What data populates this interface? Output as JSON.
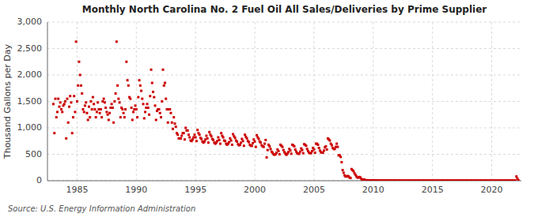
{
  "chart_data": {
    "type": "scatter",
    "title": "Monthly North Carolina No. 2 Fuel Oil All Sales/Deliveries by Prime Supplier",
    "y_label": "Thousand Gallons per Day",
    "source": "Source: U.S. Energy Information Administration",
    "color": "#cc0000",
    "marker": "square",
    "grid": true,
    "xlim": [
      1982.5,
      2022.5
    ],
    "xticks": [
      1985,
      1990,
      1995,
      2000,
      2005,
      2010,
      2015,
      2020
    ],
    "ylim": [
      0,
      3000
    ],
    "yticks": [
      0,
      500,
      {
        "value": 1000,
        "label": "1,000"
      },
      {
        "value": 1500,
        "label": "1,500"
      },
      {
        "value": 2000,
        "label": "2,000"
      },
      {
        "value": 2500,
        "label": "2,500"
      },
      {
        "value": 3000,
        "label": "3,000"
      }
    ],
    "x": [
      1983,
      1983.083333,
      1983.166667,
      1983.25,
      1983.333333,
      1983.416667,
      1983.5,
      1983.583333,
      1983.666667,
      1983.75,
      1983.833333,
      1983.916667,
      1984,
      1984.083333,
      1984.166667,
      1984.25,
      1984.333333,
      1984.416667,
      1984.5,
      1984.583333,
      1984.666667,
      1984.75,
      1984.833333,
      1984.916667,
      1985,
      1985.083333,
      1985.166667,
      1985.25,
      1985.333333,
      1985.416667,
      1985.5,
      1985.583333,
      1985.666667,
      1985.75,
      1985.833333,
      1985.916667,
      1986,
      1986.083333,
      1986.166667,
      1986.25,
      1986.333333,
      1986.416667,
      1986.5,
      1986.583333,
      1986.666667,
      1986.75,
      1986.833333,
      1986.916667,
      1987,
      1987.083333,
      1987.166667,
      1987.25,
      1987.333333,
      1987.416667,
      1987.5,
      1987.583333,
      1987.666667,
      1987.75,
      1987.833333,
      1987.916667,
      1988,
      1988.083333,
      1988.166667,
      1988.25,
      1988.333333,
      1988.416667,
      1988.5,
      1988.583333,
      1988.666667,
      1988.75,
      1988.833333,
      1988.916667,
      1989,
      1989.083333,
      1989.166667,
      1989.25,
      1989.333333,
      1989.416667,
      1989.5,
      1989.583333,
      1989.666667,
      1989.75,
      1989.833333,
      1989.916667,
      1990,
      1990.083333,
      1990.166667,
      1990.25,
      1990.333333,
      1990.416667,
      1990.5,
      1990.583333,
      1990.666667,
      1990.75,
      1990.833333,
      1990.916667,
      1991,
      1991.083333,
      1991.166667,
      1991.25,
      1991.333333,
      1991.416667,
      1991.5,
      1991.583333,
      1991.666667,
      1991.75,
      1991.833333,
      1991.916667,
      1992,
      1992.083333,
      1992.166667,
      1992.25,
      1992.333333,
      1992.416667,
      1992.5,
      1992.583333,
      1992.666667,
      1992.75,
      1992.833333,
      1992.916667,
      1993,
      1993.083333,
      1993.166667,
      1993.25,
      1993.333333,
      1993.416667,
      1993.5,
      1993.583333,
      1993.666667,
      1993.75,
      1993.833333,
      1993.916667,
      1994,
      1994.083333,
      1994.166667,
      1994.25,
      1994.333333,
      1994.416667,
      1994.5,
      1994.583333,
      1994.666667,
      1994.75,
      1994.833333,
      1994.916667,
      1995,
      1995.083333,
      1995.166667,
      1995.25,
      1995.333333,
      1995.416667,
      1995.5,
      1995.583333,
      1995.666667,
      1995.75,
      1995.833333,
      1995.916667,
      1996,
      1996.083333,
      1996.166667,
      1996.25,
      1996.333333,
      1996.416667,
      1996.5,
      1996.583333,
      1996.666667,
      1996.75,
      1996.833333,
      1996.916667,
      1997,
      1997.083333,
      1997.166667,
      1997.25,
      1997.333333,
      1997.416667,
      1997.5,
      1997.583333,
      1997.666667,
      1997.75,
      1997.833333,
      1997.916667,
      1998,
      1998.083333,
      1998.166667,
      1998.25,
      1998.333333,
      1998.416667,
      1998.5,
      1998.583333,
      1998.666667,
      1998.75,
      1998.833333,
      1998.916667,
      1999,
      1999.083333,
      1999.166667,
      1999.25,
      1999.333333,
      1999.416667,
      1999.5,
      1999.583333,
      1999.666667,
      1999.75,
      1999.833333,
      1999.916667,
      2000,
      2000.083333,
      2000.166667,
      2000.25,
      2000.333333,
      2000.416667,
      2000.5,
      2000.583333,
      2000.666667,
      2000.75,
      2000.833333,
      2000.916667,
      2001,
      2001.083333,
      2001.166667,
      2001.25,
      2001.333333,
      2001.416667,
      2001.5,
      2001.583333,
      2001.666667,
      2001.75,
      2001.833333,
      2001.916667,
      2002,
      2002.083333,
      2002.166667,
      2002.25,
      2002.333333,
      2002.416667,
      2002.5,
      2002.583333,
      2002.666667,
      2002.75,
      2002.833333,
      2002.916667,
      2003,
      2003.083333,
      2003.166667,
      2003.25,
      2003.333333,
      2003.416667,
      2003.5,
      2003.583333,
      2003.666667,
      2003.75,
      2003.833333,
      2003.916667,
      2004,
      2004.083333,
      2004.166667,
      2004.25,
      2004.333333,
      2004.416667,
      2004.5,
      2004.583333,
      2004.666667,
      2004.75,
      2004.833333,
      2004.916667,
      2005,
      2005.083333,
      2005.166667,
      2005.25,
      2005.333333,
      2005.416667,
      2005.5,
      2005.583333,
      2005.666667,
      2005.75,
      2005.833333,
      2005.916667,
      2006,
      2006.083333,
      2006.166667,
      2006.25,
      2006.333333,
      2006.416667,
      2006.5,
      2006.583333,
      2006.666667,
      2006.75,
      2006.833333,
      2006.916667,
      2007,
      2007.083333,
      2007.166667,
      2007.25,
      2007.333333,
      2007.416667,
      2007.5,
      2007.583333,
      2007.666667,
      2007.75,
      2007.833333,
      2007.916667,
      2008,
      2008.083333,
      2008.166667,
      2008.25,
      2008.333333,
      2008.416667,
      2008.5,
      2008.583333,
      2008.666667,
      2008.75,
      2008.833333,
      2008.916667,
      2009,
      2009.083333,
      2009.166667,
      2009.25,
      2009.333333,
      2009.416667,
      2009.5,
      2009.583333,
      2009.666667,
      2009.75,
      2009.833333,
      2009.916667,
      2010,
      2010.083333,
      2010.166667,
      2010.25,
      2010.333333,
      2010.416667,
      2010.5,
      2010.583333,
      2010.666667,
      2010.75,
      2010.833333,
      2010.916667,
      2011,
      2011.083333,
      2011.166667,
      2011.25,
      2011.333333,
      2011.416667,
      2011.5,
      2011.583333,
      2011.666667,
      2011.75,
      2011.833333,
      2011.916667,
      2012,
      2012.083333,
      2012.166667,
      2012.25,
      2012.333333,
      2012.416667,
      2012.5,
      2012.583333,
      2012.666667,
      2012.75,
      2012.833333,
      2012.916667,
      2013,
      2013.083333,
      2013.166667,
      2013.25,
      2013.333333,
      2013.416667,
      2013.5,
      2013.583333,
      2013.666667,
      2013.75,
      2013.833333,
      2013.916667,
      2014,
      2014.083333,
      2014.166667,
      2014.25,
      2014.333333,
      2014.416667,
      2014.5,
      2014.583333,
      2014.666667,
      2014.75,
      2014.833333,
      2014.916667,
      2015,
      2015.083333,
      2015.166667,
      2015.25,
      2015.333333,
      2015.416667,
      2015.5,
      2015.583333,
      2015.666667,
      2015.75,
      2015.833333,
      2015.916667,
      2016,
      2016.083333,
      2016.166667,
      2016.25,
      2016.333333,
      2016.416667,
      2016.5,
      2016.583333,
      2016.666667,
      2016.75,
      2016.833333,
      2016.916667,
      2017,
      2017.083333,
      2017.166667,
      2017.25,
      2017.333333,
      2017.416667,
      2017.5,
      2017.583333,
      2017.666667,
      2017.75,
      2017.833333,
      2017.916667,
      2018,
      2018.083333,
      2018.166667,
      2018.25,
      2018.333333,
      2018.416667,
      2018.5,
      2018.583333,
      2018.666667,
      2018.75,
      2018.833333,
      2018.916667,
      2019,
      2019.083333,
      2019.166667,
      2019.25,
      2019.333333,
      2019.416667,
      2019.5,
      2019.583333,
      2019.666667,
      2019.75,
      2019.833333,
      2019.916667,
      2020,
      2020.083333,
      2020.166667,
      2020.25,
      2020.333333,
      2020.416667,
      2020.5,
      2020.583333,
      2020.666667,
      2020.75,
      2020.833333,
      2020.916667,
      2021,
      2021.083333,
      2021.166667,
      2021.25,
      2021.333333,
      2021.416667,
      2021.5,
      2021.583333,
      2021.666667,
      2021.75,
      2021.833333,
      2021.916667,
      2022,
      2022.083333,
      2022.166667,
      2022.25
    ],
    "values": [
      1450,
      900,
      1550,
      1200,
      1300,
      1550,
      1400,
      1480,
      1350,
      1300,
      1420,
      1450,
      1500,
      800,
      1550,
      1100,
      1400,
      1600,
      1480,
      900,
      1200,
      1600,
      1300,
      2630,
      1500,
      1800,
      2250,
      2000,
      1800,
      1650,
      1350,
      1300,
      1420,
      1480,
      1280,
      1150,
      1400,
      1200,
      1500,
      1350,
      1580,
      1450,
      1350,
      1200,
      1300,
      1480,
      1350,
      1280,
      1350,
      1200,
      1500,
      1550,
      1480,
      1380,
      1300,
      1250,
      1150,
      1280,
      1380,
      1450,
      1380,
      1100,
      1500,
      1650,
      2630,
      1800,
      1550,
      1480,
      1200,
      1380,
      1350,
      1280,
      1200,
      1350,
      2250,
      1900,
      1800,
      1580,
      1550,
      1380,
      1150,
      1300,
      1350,
      1420,
      1350,
      1200,
      1580,
      1900,
      1800,
      1700,
      1550,
      1450,
      1180,
      1300,
      1380,
      1450,
      1380,
      1250,
      1600,
      2100,
      1850,
      1680,
      1580,
      1420,
      1150,
      1320,
      1350,
      1350,
      1280,
      1200,
      1500,
      2100,
      1800,
      1850,
      1550,
      1350,
      1100,
      1350,
      1350,
      1280,
      1100,
      980,
      1200,
      1080,
      1020,
      900,
      870,
      800,
      800,
      800,
      850,
      900,
      900,
      780,
      1000,
      950,
      950,
      870,
      820,
      760,
      750,
      780,
      820,
      870,
      820,
      750,
      960,
      900,
      870,
      810,
      790,
      740,
      720,
      740,
      780,
      850,
      800,
      720,
      920,
      870,
      840,
      790,
      770,
      720,
      700,
      720,
      750,
      820,
      770,
      700,
      900,
      850,
      820,
      760,
      750,
      700,
      680,
      700,
      730,
      800,
      760,
      680,
      880,
      840,
      810,
      760,
      740,
      690,
      670,
      680,
      720,
      790,
      750,
      660,
      870,
      830,
      800,
      750,
      730,
      680,
      660,
      660,
      710,
      780,
      740,
      640,
      860,
      820,
      790,
      740,
      720,
      670,
      650,
      640,
      700,
      770,
      440,
      580,
      680,
      650,
      600,
      550,
      530,
      500,
      490,
      500,
      530,
      590,
      560,
      500,
      680,
      660,
      640,
      580,
      540,
      510,
      490,
      510,
      540,
      600,
      570,
      510,
      680,
      670,
      650,
      590,
      550,
      520,
      510,
      510,
      550,
      610,
      580,
      520,
      690,
      680,
      660,
      600,
      560,
      530,
      520,
      520,
      560,
      620,
      590,
      530,
      700,
      700,
      680,
      620,
      570,
      540,
      530,
      530,
      570,
      630,
      650,
      590,
      800,
      780,
      760,
      700,
      670,
      620,
      600,
      600,
      640,
      700,
      640,
      480,
      480,
      450,
      350,
      200,
      150,
      100,
      80,
      80,
      90,
      80,
      60,
      50,
      220,
      200,
      180,
      140,
      110,
      80,
      60,
      60,
      70,
      60,
      30,
      20,
      25,
      18,
      12,
      8,
      8,
      6,
      6,
      5,
      6,
      8,
      5,
      5,
      8,
      6,
      5,
      4,
      3,
      2,
      2,
      2,
      2,
      3,
      2,
      2,
      4,
      3,
      3,
      2,
      2,
      2,
      2,
      2,
      2,
      2,
      2,
      2,
      3,
      2,
      2,
      2,
      2,
      2,
      2,
      2,
      2,
      2,
      2,
      2,
      2,
      2,
      2,
      2,
      2,
      2,
      2,
      2,
      2,
      2,
      2,
      2,
      2,
      2,
      2,
      2,
      2,
      2,
      2,
      2,
      2,
      2,
      2,
      2,
      2,
      2,
      2,
      2,
      2,
      2,
      2,
      2,
      2,
      2,
      2,
      2,
      2,
      2,
      2,
      2,
      2,
      2,
      2,
      2,
      2,
      2,
      2,
      2,
      2,
      2,
      2,
      2,
      2,
      2,
      2,
      2,
      2,
      2,
      2,
      2,
      2,
      2,
      2,
      2,
      2,
      2,
      2,
      2,
      2,
      2,
      2,
      2,
      2,
      2,
      2,
      2,
      2,
      2,
      2,
      2,
      2,
      2,
      2,
      2,
      2,
      2,
      2,
      2,
      2,
      2,
      2,
      2,
      2,
      2,
      2,
      2,
      2,
      2,
      2,
      2,
      2,
      2,
      2,
      2,
      2,
      2,
      2,
      80,
      40,
      10
    ]
  }
}
